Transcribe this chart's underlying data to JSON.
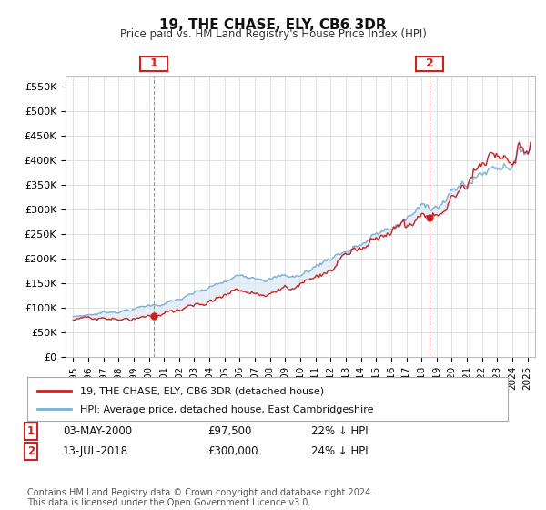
{
  "title": "19, THE CHASE, ELY, CB6 3DR",
  "subtitle": "Price paid vs. HM Land Registry's House Price Index (HPI)",
  "hpi_label": "HPI: Average price, detached house, East Cambridgeshire",
  "property_label": "19, THE CHASE, ELY, CB6 3DR (detached house)",
  "annotation1": {
    "label": "1",
    "date": "03-MAY-2000",
    "price": 97500,
    "note": "22% ↓ HPI",
    "x_year": 2000.34
  },
  "annotation2": {
    "label": "2",
    "date": "13-JUL-2018",
    "price": 300000,
    "note": "24% ↓ HPI",
    "x_year": 2018.53
  },
  "ylim": [
    0,
    570000
  ],
  "xlim": [
    1994.5,
    2025.5
  ],
  "yticks": [
    0,
    50000,
    100000,
    150000,
    200000,
    250000,
    300000,
    350000,
    400000,
    450000,
    500000,
    550000
  ],
  "background_color": "#ffffff",
  "grid_color": "#dddddd",
  "hpi_color": "#7bafd4",
  "hpi_fill_color": "#dce9f5",
  "property_color": "#cc2222",
  "footnote": "Contains HM Land Registry data © Crown copyright and database right 2024.\nThis data is licensed under the Open Government Licence v3.0."
}
